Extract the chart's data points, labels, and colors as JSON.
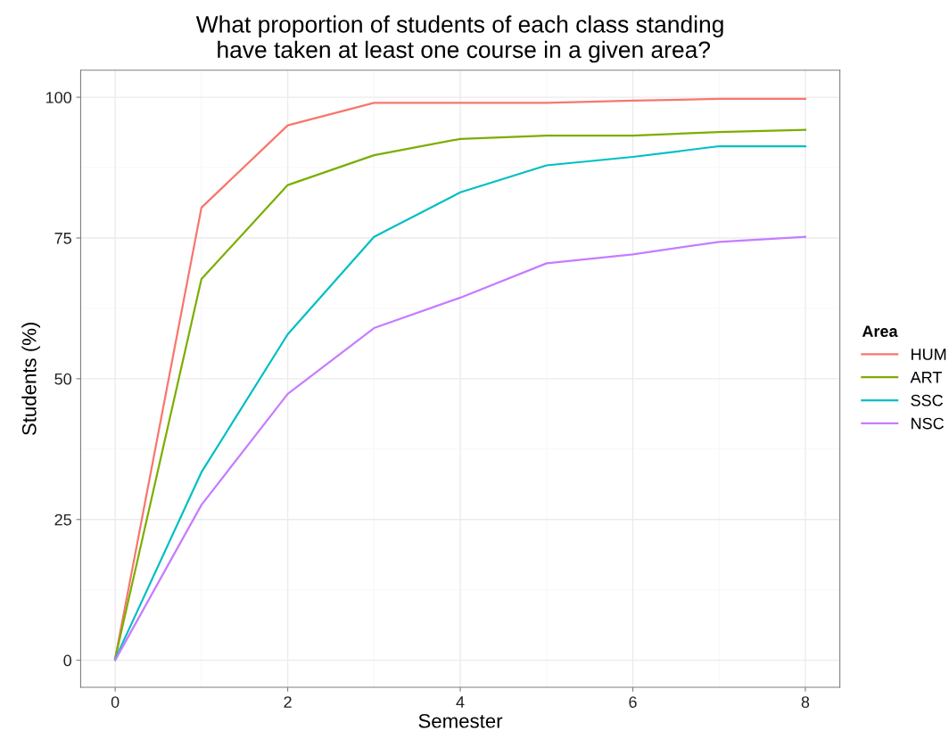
{
  "chart_data": {
    "type": "line",
    "title": "What proportion of students of each class standing\n have taken at least one course in a given area?",
    "xlabel": "Semester",
    "ylabel": "Students (%)",
    "legend_title": "Area",
    "x": [
      0,
      1,
      2,
      3,
      4,
      5,
      6,
      7,
      8
    ],
    "series": [
      {
        "name": "HUM",
        "color": "#f8766d",
        "values": [
          0.3,
          80.4,
          95,
          99,
          99,
          99,
          99.4,
          99.7,
          99.7
        ]
      },
      {
        "name": "ART",
        "color": "#7cae00",
        "values": [
          0.3,
          67.7,
          84.4,
          89.7,
          92.6,
          93.2,
          93.2,
          93.8,
          94.2
        ]
      },
      {
        "name": "SSC",
        "color": "#00bfc4",
        "values": [
          0.2,
          33.4,
          57.9,
          75.2,
          83.1,
          87.9,
          89.4,
          91.3,
          91.3
        ]
      },
      {
        "name": "NSC",
        "color": "#c77cff",
        "values": [
          0,
          27.6,
          47.3,
          59,
          64.4,
          70.5,
          72.1,
          74.3,
          75.2
        ]
      }
    ],
    "xlim": [
      -0.4,
      8.4
    ],
    "ylim": [
      -4.8,
      104.8
    ],
    "xticks": [
      0,
      2,
      4,
      6,
      8
    ],
    "yticks": [
      0,
      25,
      50,
      75,
      100
    ],
    "grid": true,
    "legend": "right",
    "marker": "none",
    "line_style": "solid"
  }
}
